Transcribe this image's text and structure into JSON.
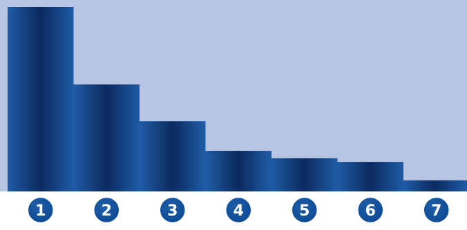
{
  "chart_data": {
    "type": "bar",
    "categories": [
      "1",
      "2",
      "3",
      "4",
      "5",
      "6",
      "7"
    ],
    "values": [
      100,
      58,
      38,
      22,
      18,
      16,
      6
    ],
    "ylim": [
      0,
      100
    ],
    "grid": false,
    "title": "",
    "xlabel": "",
    "ylabel": ""
  },
  "colors": {
    "plot_background": "#b8c5e2",
    "bar_light": "#1f5ca6",
    "bar_dark": "#0b2a5e",
    "badge_fill": "#0d4a94",
    "badge_ring": "#ffffff",
    "badge_text": "#ffffff"
  }
}
